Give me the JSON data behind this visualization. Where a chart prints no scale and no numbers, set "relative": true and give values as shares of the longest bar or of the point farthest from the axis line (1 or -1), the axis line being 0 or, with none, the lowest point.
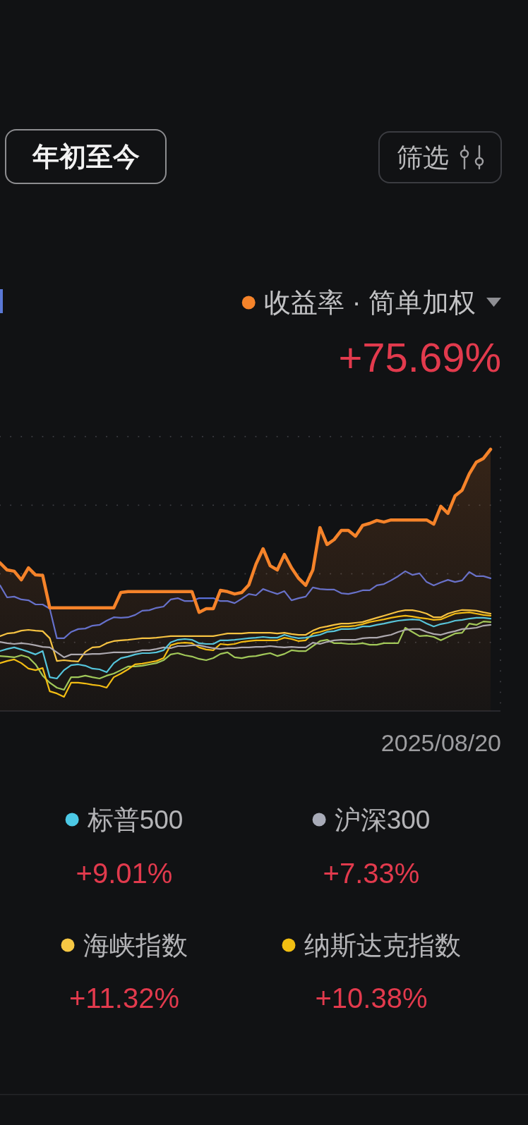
{
  "chart_data": {
    "type": "line",
    "relative": true,
    "grid": "y",
    "legend": "bottom",
    "categories": [
      null,
      null,
      null,
      null,
      null,
      null,
      null,
      null,
      null,
      null,
      null,
      null,
      null,
      null,
      null,
      null,
      null,
      null,
      null,
      null,
      null,
      null,
      null,
      null,
      null,
      null,
      null,
      null,
      null,
      null,
      null,
      null,
      null,
      null,
      null,
      null,
      null,
      null,
      null,
      null,
      null,
      null,
      null,
      null,
      null,
      null,
      null,
      null,
      null,
      null,
      null,
      null,
      null,
      null,
      null,
      null,
      null,
      null,
      null,
      null,
      null,
      null,
      null,
      null,
      null,
      null,
      null,
      null,
      null,
      null
    ],
    "series": [
      {
        "name": "收益率 · 简单加权",
        "type": "area",
        "color": "#f5832a",
        "values": [
          0.566,
          0.539,
          0.534,
          0.501,
          0.547,
          0.52,
          0.518,
          0.394,
          0.394,
          0.394,
          0.394,
          0.394,
          0.394,
          0.394,
          0.394,
          0.394,
          0.394,
          0.453,
          0.456,
          0.456,
          0.456,
          0.456,
          0.456,
          0.456,
          0.456,
          0.456,
          0.456,
          0.456,
          0.377,
          0.391,
          0.391,
          0.461,
          0.456,
          0.447,
          0.453,
          0.482,
          0.561,
          0.62,
          0.555,
          0.539,
          0.598,
          0.547,
          0.507,
          0.48,
          0.539,
          0.701,
          0.636,
          0.655,
          0.69,
          0.69,
          0.668,
          0.709,
          0.717,
          0.728,
          0.722,
          0.73,
          0.73,
          0.73,
          0.73,
          0.73,
          0.73,
          0.714,
          0.782,
          0.755,
          0.822,
          0.844,
          0.906,
          0.951,
          0.965,
          1
        ]
      },
      {
        "color": "#5a6fd8",
        "values": [
          0.48,
          0.434,
          0.437,
          0.426,
          0.423,
          0.407,
          0.407,
          0.391,
          0.278,
          0.278,
          0.302,
          0.313,
          0.315,
          0.326,
          0.329,
          0.345,
          0.358,
          0.356,
          0.358,
          0.367,
          0.383,
          0.385,
          0.394,
          0.399,
          0.426,
          0.431,
          0.42,
          0.42,
          0.431,
          0.431,
          0.431,
          0.42,
          0.42,
          0.412,
          0.429,
          0.447,
          0.442,
          0.466,
          0.456,
          0.447,
          0.458,
          0.423,
          0.431,
          0.437,
          0.472,
          0.466,
          0.464,
          0.464,
          0.45,
          0.447,
          0.453,
          0.461,
          0.461,
          0.48,
          0.485,
          0.499,
          0.515,
          0.534,
          0.52,
          0.526,
          0.493,
          0.48,
          0.491,
          0.501,
          0.493,
          0.499,
          0.531,
          0.515,
          0.515,
          0.507
        ]
      },
      {
        "name": "标普500",
        "color": "#4cc9e6",
        "values": [
          0.229,
          0.237,
          0.243,
          0.235,
          0.226,
          0.216,
          0.229,
          0.129,
          0.124,
          0.156,
          0.175,
          0.178,
          0.173,
          0.162,
          0.159,
          0.148,
          0.183,
          0.202,
          0.208,
          0.216,
          0.221,
          0.221,
          0.224,
          0.232,
          0.262,
          0.272,
          0.275,
          0.272,
          0.259,
          0.256,
          0.256,
          0.27,
          0.27,
          0.272,
          0.275,
          0.278,
          0.28,
          0.283,
          0.28,
          0.28,
          0.291,
          0.283,
          0.278,
          0.28,
          0.286,
          0.291,
          0.302,
          0.305,
          0.313,
          0.313,
          0.315,
          0.323,
          0.323,
          0.329,
          0.334,
          0.34,
          0.345,
          0.348,
          0.35,
          0.348,
          0.334,
          0.323,
          0.332,
          0.337,
          0.345,
          0.348,
          0.353,
          0.356,
          0.356,
          0.353
        ]
      },
      {
        "name": "沪深300",
        "color": "#a8abb8",
        "values": [
          0.264,
          0.259,
          0.256,
          0.259,
          0.256,
          0.251,
          0.245,
          0.243,
          0.224,
          0.205,
          0.216,
          0.216,
          0.216,
          0.218,
          0.218,
          0.221,
          0.224,
          0.224,
          0.224,
          0.226,
          0.232,
          0.232,
          0.237,
          0.243,
          0.24,
          0.248,
          0.248,
          0.251,
          0.251,
          0.245,
          0.24,
          0.237,
          0.24,
          0.24,
          0.243,
          0.243,
          0.245,
          0.245,
          0.248,
          0.245,
          0.243,
          0.245,
          0.243,
          0.243,
          0.261,
          0.256,
          0.264,
          0.27,
          0.272,
          0.272,
          0.272,
          0.278,
          0.28,
          0.28,
          0.286,
          0.291,
          0.302,
          0.31,
          0.313,
          0.313,
          0.302,
          0.294,
          0.291,
          0.299,
          0.305,
          0.313,
          0.315,
          0.318,
          0.326,
          0.329
        ]
      },
      {
        "name": "海峡指数",
        "color": "#f7c844",
        "values": [
          0.286,
          0.296,
          0.299,
          0.307,
          0.31,
          0.307,
          0.305,
          0.278,
          0.191,
          0.194,
          0.191,
          0.189,
          0.226,
          0.243,
          0.245,
          0.259,
          0.267,
          0.27,
          0.272,
          0.275,
          0.278,
          0.278,
          0.28,
          0.283,
          0.286,
          0.286,
          0.286,
          0.286,
          0.286,
          0.286,
          0.286,
          0.291,
          0.296,
          0.296,
          0.296,
          0.299,
          0.299,
          0.299,
          0.299,
          0.296,
          0.299,
          0.294,
          0.291,
          0.291,
          0.307,
          0.318,
          0.323,
          0.329,
          0.334,
          0.334,
          0.337,
          0.34,
          0.348,
          0.356,
          0.364,
          0.372,
          0.38,
          0.385,
          0.385,
          0.38,
          0.372,
          0.358,
          0.358,
          0.372,
          0.38,
          0.386,
          0.385,
          0.383,
          0.377,
          0.372
        ]
      },
      {
        "name": "纳斯达克指数",
        "color": "#f2bf12",
        "values": [
          0.183,
          0.191,
          0.197,
          0.183,
          0.162,
          0.156,
          0.164,
          0.075,
          0.067,
          0.054,
          0.108,
          0.108,
          0.105,
          0.1,
          0.097,
          0.089,
          0.129,
          0.143,
          0.159,
          0.178,
          0.181,
          0.186,
          0.191,
          0.202,
          0.251,
          0.259,
          0.261,
          0.259,
          0.243,
          0.235,
          0.232,
          0.256,
          0.253,
          0.256,
          0.264,
          0.267,
          0.27,
          0.27,
          0.27,
          0.27,
          0.28,
          0.275,
          0.267,
          0.27,
          0.296,
          0.302,
          0.31,
          0.316,
          0.323,
          0.323,
          0.326,
          0.332,
          0.34,
          0.345,
          0.35,
          0.356,
          0.361,
          0.364,
          0.361,
          0.356,
          0.353,
          0.348,
          0.35,
          0.361,
          0.372,
          0.375,
          0.377,
          0.372,
          0.367,
          0.364
        ]
      },
      {
        "color": "#9ccc5c",
        "values": [
          0.21,
          0.208,
          0.205,
          0.213,
          0.205,
          0.178,
          0.135,
          0.108,
          0.089,
          0.081,
          0.129,
          0.129,
          0.135,
          0.129,
          0.124,
          0.135,
          0.143,
          0.156,
          0.17,
          0.17,
          0.173,
          0.178,
          0.183,
          0.194,
          0.216,
          0.221,
          0.213,
          0.208,
          0.199,
          0.194,
          0.202,
          0.218,
          0.224,
          0.205,
          0.202,
          0.208,
          0.21,
          0.216,
          0.221,
          0.21,
          0.218,
          0.232,
          0.229,
          0.229,
          0.248,
          0.267,
          0.272,
          0.259,
          0.259,
          0.256,
          0.256,
          0.259,
          0.253,
          0.253,
          0.259,
          0.259,
          0.259,
          0.318,
          0.302,
          0.286,
          0.288,
          0.283,
          0.27,
          0.283,
          0.296,
          0.299,
          0.334,
          0.329,
          0.342,
          0.34
        ]
      }
    ],
    "annotations": [
      "年初至今",
      "筛选",
      "+75.69%",
      "2025/08/20",
      "+9.01%",
      "+7.33%",
      "+11.32%",
      "+10.38%"
    ]
  }
}
